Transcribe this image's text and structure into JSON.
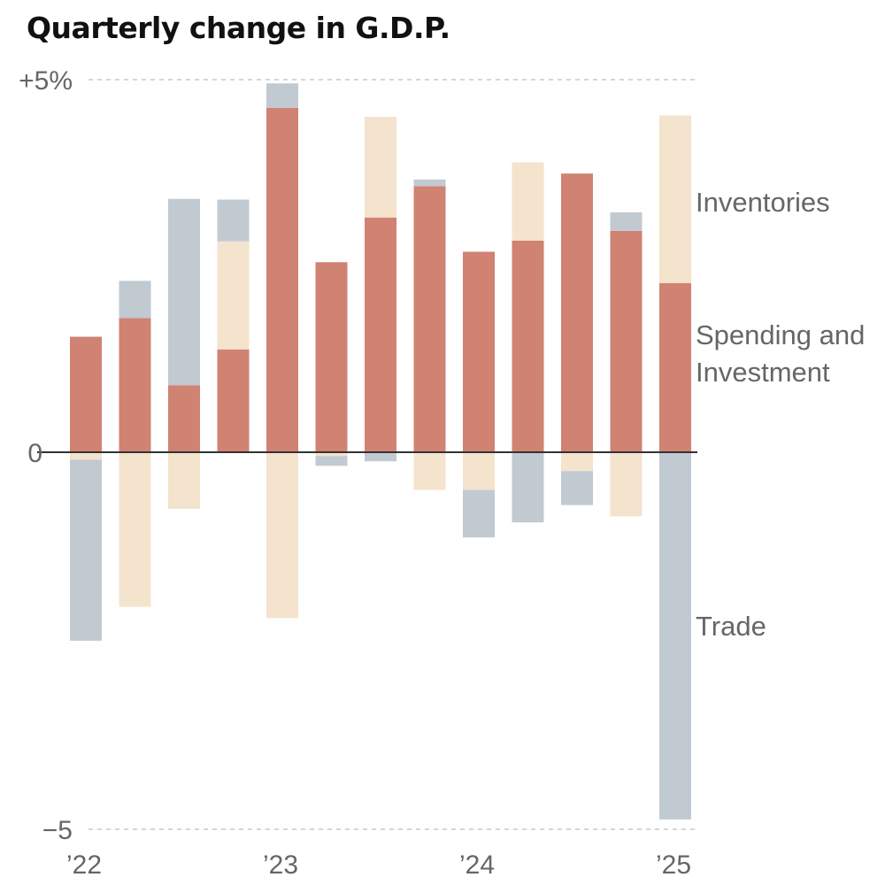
{
  "chart_data": {
    "type": "bar",
    "stacked": true,
    "title": "Quarterly change in G.D.P.",
    "xlabel": "",
    "ylabel": "",
    "ylim": [
      -5,
      5
    ],
    "y_ticks": [
      {
        "value": 5,
        "label": "+5%"
      },
      {
        "value": 0,
        "label": "0"
      },
      {
        "value": -5,
        "label": "−5"
      }
    ],
    "x_tick_labels": [
      {
        "index": 0,
        "label": "’22"
      },
      {
        "index": 4,
        "label": "’23"
      },
      {
        "index": 8,
        "label": "’24"
      },
      {
        "index": 12,
        "label": "’25"
      }
    ],
    "categories": [
      "2022 Q1",
      "2022 Q2",
      "2022 Q3",
      "2022 Q4",
      "2023 Q1",
      "2023 Q2",
      "2023 Q3",
      "2023 Q4",
      "2024 Q1",
      "2024 Q2",
      "2024 Q3",
      "2024 Q4",
      "2025 Q1"
    ],
    "series": [
      {
        "name": "Spending and Investment",
        "color": "#d08273",
        "values": [
          1.55,
          1.8,
          0.9,
          1.38,
          4.62,
          2.55,
          3.15,
          3.57,
          2.69,
          2.84,
          3.74,
          2.97,
          2.27
        ]
      },
      {
        "name": "Inventories",
        "color": "#f4e3cd",
        "values": [
          -0.1,
          -2.05,
          -0.75,
          1.45,
          -2.2,
          -0.05,
          1.35,
          -0.5,
          -0.5,
          1.05,
          -0.25,
          -0.85,
          2.25
        ]
      },
      {
        "name": "Trade",
        "color": "#c1c9d1",
        "values": [
          -2.4,
          0.5,
          2.5,
          0.56,
          0.33,
          -0.13,
          -0.12,
          0.09,
          -0.63,
          -0.93,
          -0.45,
          0.25,
          -4.87
        ]
      }
    ],
    "legend": [
      {
        "label": "Inventories",
        "lines": [
          "Inventories"
        ]
      },
      {
        "label": "Spending and Investment",
        "lines": [
          "Spending and",
          "Investment"
        ]
      },
      {
        "label": "Trade",
        "lines": [
          "Trade"
        ]
      }
    ],
    "legend_placement": "right",
    "grid": true
  }
}
